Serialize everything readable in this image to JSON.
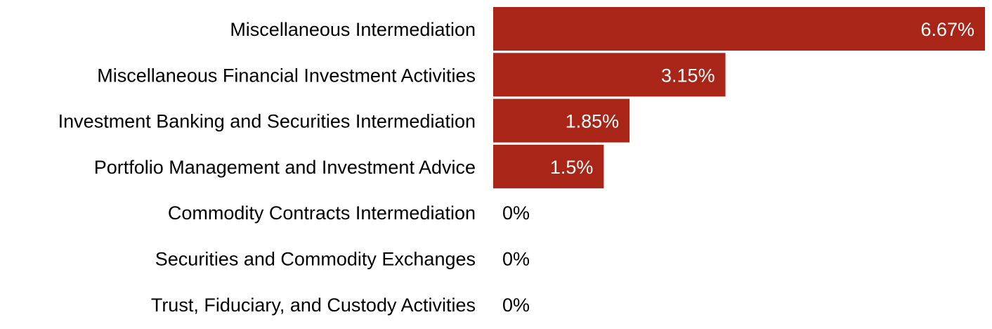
{
  "chart_data": {
    "type": "bar",
    "orientation": "horizontal",
    "categories": [
      "Miscellaneous Intermediation",
      "Miscellaneous Financial Investment Activities",
      "Investment Banking and Securities Intermediation",
      "Portfolio Management and Investment Advice",
      "Commodity Contracts Intermediation",
      "Securities and Commodity Exchanges",
      "Trust, Fiduciary, and Custody Activities"
    ],
    "values": [
      6.67,
      3.15,
      1.85,
      1.5,
      0,
      0,
      0
    ],
    "value_labels": [
      "6.67%",
      "3.15%",
      "1.85%",
      "1.5%",
      "0%",
      "0%",
      "0%"
    ],
    "unit": "%",
    "xlim": [
      0,
      6.67
    ],
    "grid": false,
    "legend": "none",
    "title": "",
    "xlabel": "",
    "ylabel": "",
    "bar_color": "#a82517"
  }
}
